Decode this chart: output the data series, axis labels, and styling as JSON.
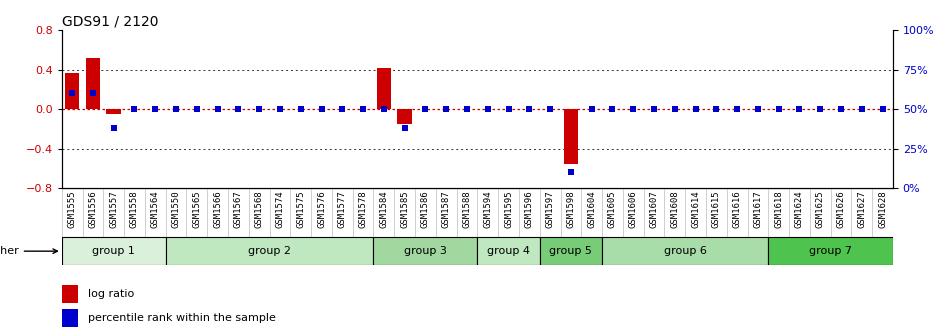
{
  "title": "GDS91 / 2120",
  "samples": [
    "GSM1555",
    "GSM1556",
    "GSM1557",
    "GSM1558",
    "GSM1564",
    "GSM1550",
    "GSM1565",
    "GSM1566",
    "GSM1567",
    "GSM1568",
    "GSM1574",
    "GSM1575",
    "GSM1576",
    "GSM1577",
    "GSM1578",
    "GSM1584",
    "GSM1585",
    "GSM1586",
    "GSM1587",
    "GSM1588",
    "GSM1594",
    "GSM1595",
    "GSM1596",
    "GSM1597",
    "GSM1598",
    "GSM1604",
    "GSM1605",
    "GSM1606",
    "GSM1607",
    "GSM1608",
    "GSM1614",
    "GSM1615",
    "GSM1616",
    "GSM1617",
    "GSM1618",
    "GSM1624",
    "GSM1625",
    "GSM1626",
    "GSM1627",
    "GSM1628"
  ],
  "log_ratio": [
    0.37,
    0.52,
    -0.05,
    0.0,
    0.0,
    0.0,
    0.0,
    0.0,
    0.0,
    0.0,
    0.0,
    0.0,
    0.0,
    0.0,
    0.0,
    0.42,
    -0.15,
    0.0,
    0.0,
    0.0,
    0.0,
    0.0,
    0.0,
    0.0,
    -0.56,
    0.0,
    0.0,
    0.0,
    0.0,
    0.0,
    0.0,
    0.0,
    0.0,
    0.0,
    0.0,
    0.0,
    0.0,
    0.0,
    0.0,
    0.0
  ],
  "pct_rank_right": [
    60,
    60,
    38,
    50,
    50,
    50,
    50,
    50,
    50,
    50,
    50,
    50,
    50,
    50,
    50,
    50,
    38,
    50,
    50,
    50,
    50,
    50,
    50,
    50,
    10,
    50,
    50,
    50,
    50,
    50,
    50,
    50,
    50,
    50,
    50,
    50,
    50,
    50,
    50,
    50
  ],
  "groups": [
    {
      "name": "group 1",
      "start": 0,
      "end": 5,
      "color": "#d8eed8"
    },
    {
      "name": "group 2",
      "start": 5,
      "end": 15,
      "color": "#c2e4c2"
    },
    {
      "name": "group 3",
      "start": 15,
      "end": 20,
      "color": "#9ed89e"
    },
    {
      "name": "group 4",
      "start": 20,
      "end": 23,
      "color": "#c2e4c2"
    },
    {
      "name": "group 5",
      "start": 23,
      "end": 26,
      "color": "#7acf7a"
    },
    {
      "name": "group 6",
      "start": 26,
      "end": 34,
      "color": "#9ede9e"
    },
    {
      "name": "group 7",
      "start": 34,
      "end": 40,
      "color": "#55c855"
    }
  ],
  "ylim_left": [
    -0.8,
    0.8
  ],
  "ylim_right": [
    0,
    100
  ],
  "yticks_left": [
    -0.8,
    -0.4,
    0.0,
    0.4,
    0.8
  ],
  "yticks_right": [
    0,
    25,
    50,
    75,
    100
  ],
  "yticklabels_right": [
    "0%",
    "25%",
    "50%",
    "75%",
    "100%"
  ],
  "bar_color": "#cc0000",
  "pct_color": "#0000cc",
  "zero_line_color": "#cc0000",
  "dotted_color": "#333333"
}
